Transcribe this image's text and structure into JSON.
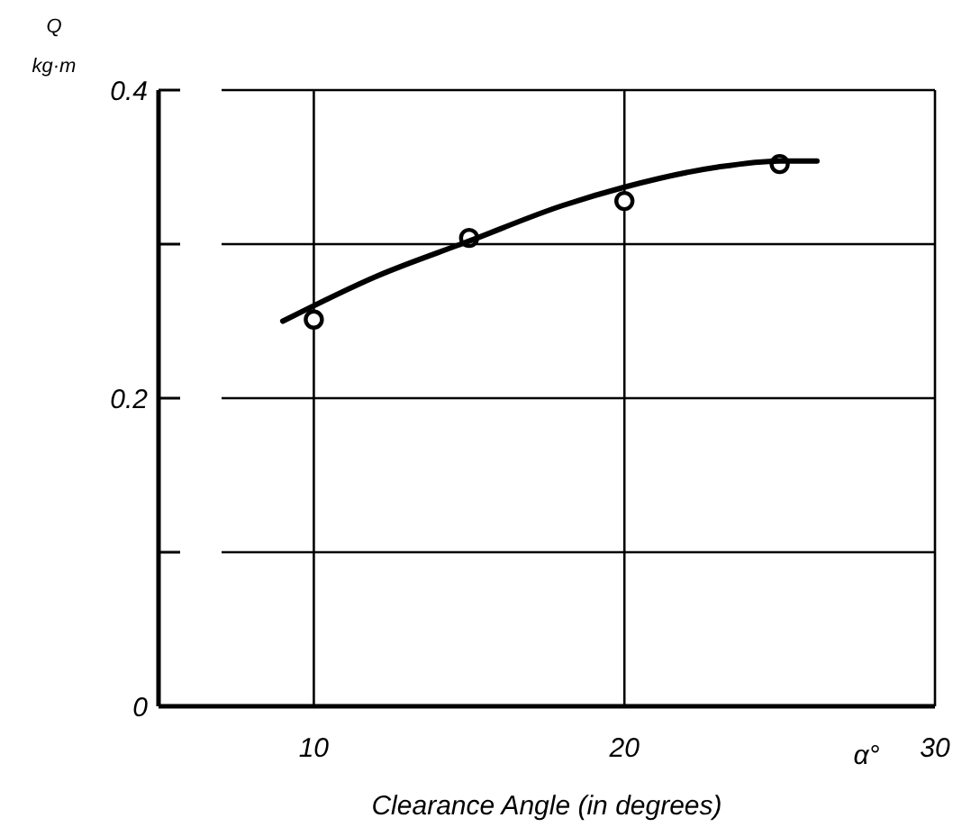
{
  "chart_data": {
    "type": "scatter",
    "xlabel": "Clearance Angle (in degrees)",
    "ylabel": "Q kg·m",
    "annotations": [
      "α°"
    ],
    "x": [
      10,
      15,
      20,
      25
    ],
    "series": [
      {
        "color": "#000000",
        "marker": "circle",
        "values": [
          0.251,
          0.304,
          0.328,
          0.352
        ]
      },
      {
        "type": "line",
        "color": "#000000",
        "marker": "none",
        "x": [
          9,
          12,
          15,
          18,
          20,
          23,
          25,
          26.2
        ],
        "values": [
          0.25,
          0.279,
          0.302,
          0.325,
          0.337,
          0.35,
          0.354,
          0.354
        ]
      }
    ],
    "xlim": [
      5,
      30
    ],
    "xticks": [
      10,
      20,
      30
    ],
    "ylim": [
      0,
      0.4
    ],
    "yticks": [
      0,
      {
        "value": 0.1,
        "label": null
      },
      0.2,
      {
        "value": 0.3,
        "label": null
      },
      0.4
    ],
    "grid": true
  }
}
